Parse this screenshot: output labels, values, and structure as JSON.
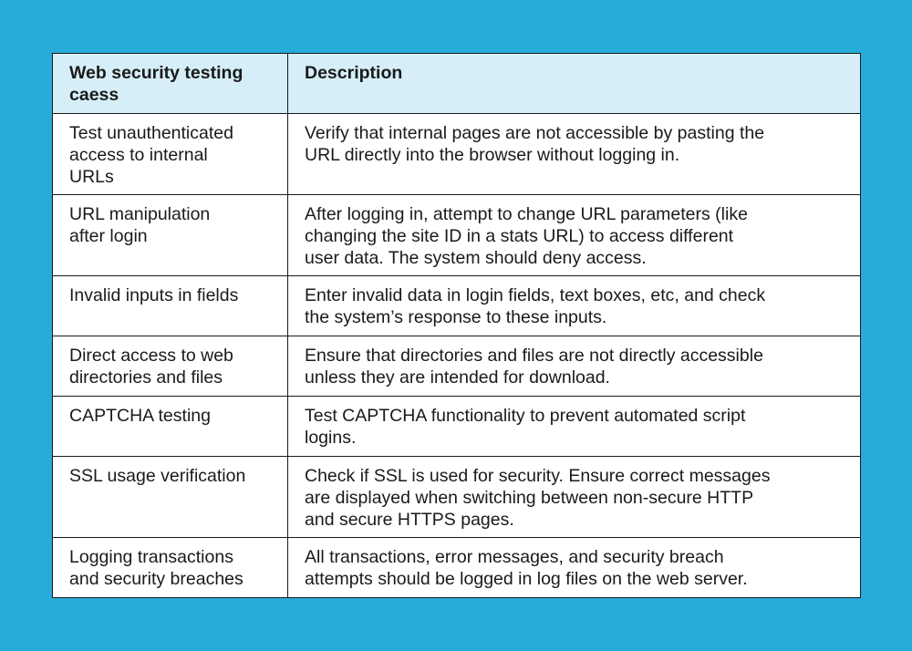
{
  "table": {
    "headers": [
      [
        "Web security testing",
        "caess"
      ],
      [
        "Description"
      ]
    ],
    "rows": [
      {
        "case": [
          "Test unauthenticated",
          "access to internal",
          "URLs"
        ],
        "description": [
          "Verify that internal pages are not accessible by pasting the",
          "URL directly into the browser without logging in."
        ]
      },
      {
        "case": [
          "URL manipulation",
          "after login"
        ],
        "description": [
          "After logging in, attempt to change URL parameters (like",
          "changing the site ID in a stats URL) to access different",
          "user data. The system should deny access."
        ]
      },
      {
        "case": [
          "Invalid inputs in fields"
        ],
        "description": [
          "Enter invalid data in login fields, text boxes, etc, and check",
          "the system’s response to these inputs."
        ]
      },
      {
        "case": [
          "Direct access to web",
          "directories and files"
        ],
        "description": [
          "Ensure that directories and files are not directly accessible",
          "unless they are intended for download."
        ]
      },
      {
        "case": [
          "CAPTCHA testing"
        ],
        "description": [
          "Test CAPTCHA functionality to prevent automated script",
          "logins."
        ]
      },
      {
        "case": [
          "SSL usage verification"
        ],
        "description": [
          "Check if SSL is used for security. Ensure correct messages",
          "are displayed when switching between non-secure HTTP",
          "and secure HTTPS pages."
        ]
      },
      {
        "case": [
          "Logging transactions",
          "and security breaches"
        ],
        "description": [
          "All transactions, error messages, and security breach",
          "attempts should be logged in log files on the web server."
        ]
      }
    ]
  },
  "colors": {
    "background": "#27acd9",
    "header": "#d5eef8",
    "border": "#1a1a1a"
  }
}
